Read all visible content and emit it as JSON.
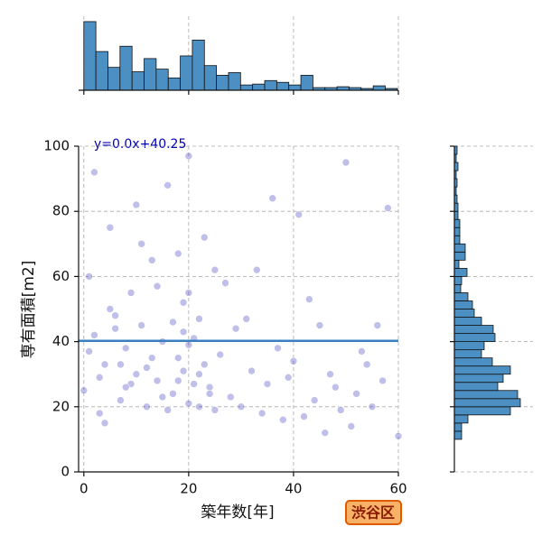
{
  "chart_data": [
    {
      "type": "scatter",
      "x_label": "築年数[年]",
      "y_label": "専有面積[m2]",
      "badge": "渋谷区",
      "annotation": "y=0.0x+40.25",
      "regression": {
        "slope": 0.0,
        "intercept": 40.25,
        "color": "#3a7fc0"
      },
      "color": "#2a2ab8",
      "grid": true,
      "xlim": [
        -1,
        60
      ],
      "ylim": [
        0,
        100
      ],
      "xticks": [
        0,
        20,
        40,
        60
      ],
      "yticks": [
        0,
        20,
        40,
        60,
        80,
        100
      ],
      "x": [
        0,
        1,
        2,
        3,
        4,
        5,
        6,
        7,
        8,
        9,
        10,
        11,
        12,
        13,
        14,
        15,
        16,
        17,
        18,
        19,
        20,
        21,
        22,
        23,
        24,
        25,
        26,
        27,
        28,
        29,
        30,
        31,
        32,
        33,
        34,
        35,
        36,
        37,
        38,
        39,
        40,
        41,
        42,
        43,
        44,
        45,
        46,
        47,
        48,
        49,
        50,
        52,
        54,
        56,
        58,
        60,
        55,
        53,
        51,
        57,
        1,
        3,
        5,
        7,
        9,
        11,
        13,
        15,
        17,
        19,
        20,
        20,
        21,
        22,
        23,
        24,
        25,
        22,
        19,
        18,
        2,
        4,
        6,
        8,
        10,
        12,
        14,
        16,
        18,
        20
      ],
      "y": [
        25,
        60,
        42,
        18,
        33,
        75,
        48,
        22,
        38,
        55,
        30,
        45,
        20,
        65,
        28,
        40,
        88,
        24,
        35,
        52,
        21,
        41,
        30,
        72,
        26,
        19,
        36,
        58,
        23,
        44,
        20,
        47,
        31,
        62,
        18,
        27,
        84,
        38,
        16,
        29,
        34,
        79,
        17,
        53,
        22,
        45,
        12,
        30,
        26,
        19,
        95,
        24,
        33,
        45,
        81,
        11,
        20,
        37,
        14,
        28,
        37,
        29,
        50,
        33,
        27,
        70,
        35,
        23,
        46,
        31,
        55,
        39,
        27,
        47,
        33,
        24,
        62,
        20,
        43,
        28,
        92,
        15,
        44,
        26,
        82,
        32,
        57,
        19,
        67,
        97
      ]
    },
    {
      "type": "histogram",
      "orientation": "vertical",
      "color": "#4c8fc2",
      "xlim": [
        -1,
        60
      ],
      "ylim": [
        0,
        80
      ],
      "xticks": [
        0,
        20,
        40,
        60
      ],
      "grid": true,
      "bins": [
        0,
        2.3,
        4.6,
        6.9,
        9.2,
        11.5,
        13.8,
        16.1,
        18.4,
        20.7,
        23,
        25.3,
        27.6,
        29.9,
        32.2,
        34.5,
        36.8,
        39.1,
        41.4,
        43.7,
        46,
        48.3,
        50.6,
        52.9,
        55.2,
        57.5,
        59.8
      ],
      "values": [
        78,
        44,
        26,
        50,
        21,
        36,
        24,
        14,
        39,
        57,
        28,
        17,
        20,
        6,
        7,
        11,
        9,
        6,
        17,
        3,
        3,
        4,
        3,
        2,
        5,
        2
      ]
    },
    {
      "type": "histogram",
      "orientation": "horizontal",
      "color": "#4c8fc2",
      "xlim": [
        0,
        80
      ],
      "ylim": [
        0,
        100
      ],
      "yticks": [
        0,
        20,
        40,
        60,
        80,
        100
      ],
      "grid": true,
      "bins": [
        10,
        12.5,
        15,
        17.5,
        20,
        22.5,
        25,
        27.5,
        30,
        32.5,
        35,
        37.5,
        40,
        42.5,
        45,
        47.5,
        50,
        52.5,
        55,
        57.5,
        60,
        62.5,
        65,
        67.5,
        70,
        72.5,
        75,
        77.5,
        80,
        82.5,
        85,
        87.5,
        90,
        92.5,
        95,
        97.5,
        100
      ],
      "values": [
        8,
        8,
        15,
        62,
        73,
        70,
        48,
        54,
        62,
        42,
        30,
        33,
        45,
        43,
        30,
        22,
        20,
        15,
        7,
        8,
        14,
        5,
        12,
        12,
        6,
        6,
        6,
        4,
        4,
        3,
        2,
        3,
        2,
        4,
        2,
        3
      ]
    }
  ]
}
